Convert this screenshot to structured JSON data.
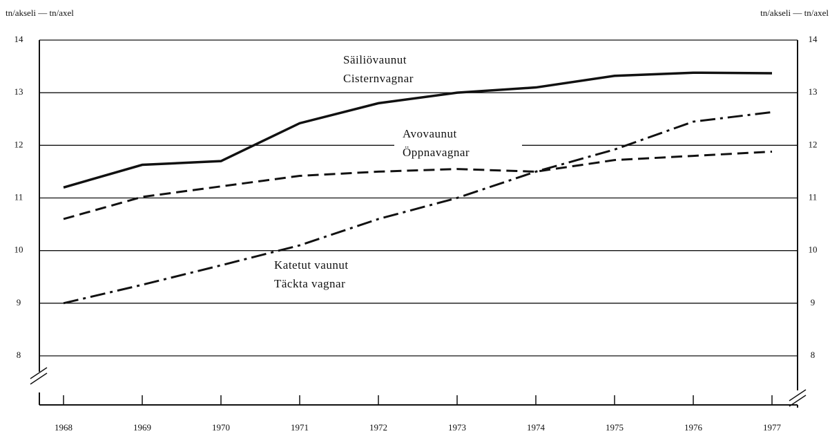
{
  "chart_data": {
    "type": "line",
    "ylabel": "tn/akseli — tn/axel",
    "y2label": "tn/akseli — tn/axel",
    "categories": [
      "1968",
      "1969",
      "1970",
      "1971",
      "1972",
      "1973",
      "1974",
      "1975",
      "1976",
      "1977"
    ],
    "series": [
      {
        "name": "Säiliövaunut",
        "name_sv": "Cisternvagnar",
        "color": "#111111",
        "style": "solid",
        "values": [
          11.2,
          11.63,
          11.7,
          12.42,
          12.8,
          13.0,
          13.1,
          13.32,
          13.38,
          13.37
        ]
      },
      {
        "name": "Avovaunut",
        "name_sv": "Öppnavagnar",
        "color": "#111111",
        "style": "dashed",
        "values": [
          10.6,
          11.02,
          11.22,
          11.42,
          11.5,
          11.55,
          11.5,
          11.72,
          11.8,
          11.88
        ]
      },
      {
        "name": "Katetut vaunut",
        "name_sv": "Täckta vagnar",
        "color": "#111111",
        "style": "dashdot",
        "values": [
          9.0,
          9.35,
          9.72,
          10.1,
          10.6,
          11.0,
          11.5,
          11.92,
          12.45,
          12.63
        ]
      }
    ],
    "ylim": [
      8,
      14
    ],
    "yticks": [
      8,
      9,
      10,
      11,
      12,
      13,
      14
    ],
    "y2lim": [
      8,
      14
    ],
    "y2ticks": [
      8,
      9,
      10,
      11,
      12,
      13,
      14
    ],
    "grid": true
  }
}
